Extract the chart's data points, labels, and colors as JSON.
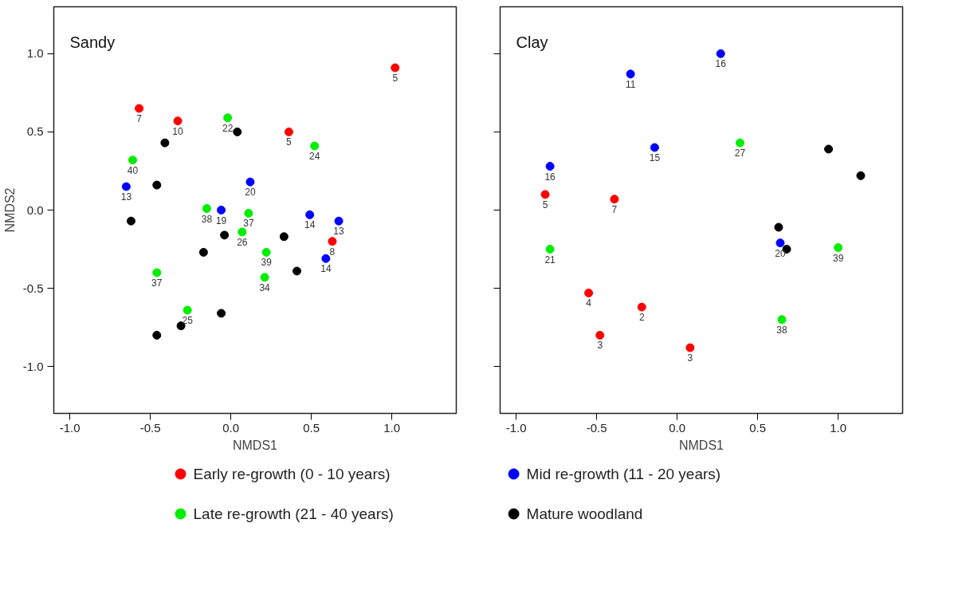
{
  "chart_data": [
    {
      "type": "scatter",
      "title": "Sandy",
      "xlabel": "NMDS1",
      "ylabel": "NMDS2",
      "xlim": [
        -1.1,
        1.4
      ],
      "ylim": [
        -1.3,
        1.3
      ],
      "xticks": [
        {
          "value": -1,
          "label": "-1.0"
        },
        {
          "value": -0.5,
          "label": "-0.5"
        },
        {
          "value": 0,
          "label": "0.0"
        },
        {
          "value": 0.5,
          "label": "0.5"
        },
        {
          "value": 1,
          "label": "1.0"
        }
      ],
      "yticks": [
        {
          "value": -1,
          "label": "-1.0"
        },
        {
          "value": -0.5,
          "label": "-0.5"
        },
        {
          "value": 0,
          "label": "0.0"
        },
        {
          "value": 0.5,
          "label": "0.5"
        },
        {
          "value": 1,
          "label": "1.0"
        }
      ],
      "grid": false,
      "marker": "circle",
      "legend": "bottom",
      "series": [
        {
          "name": "Early re-growth (0 - 10 years)",
          "color": "#ff0000",
          "x": [
            1.02,
            -0.57,
            -0.33,
            0.36,
            0.63
          ],
          "values": [
            0.91,
            0.65,
            0.57,
            0.5,
            -0.2
          ]
        },
        {
          "name": "Mid re-growth (11 - 20 years)",
          "color": "#0000ff",
          "x": [
            -0.65,
            0.12,
            -0.06,
            0.49,
            0.67,
            0.59
          ],
          "values": [
            0.15,
            0.18,
            0.0,
            -0.03,
            -0.07,
            -0.31
          ]
        },
        {
          "name": "Late re-growth (21 - 40 years)",
          "color": "#00ee00",
          "x": [
            -0.61,
            -0.02,
            0.52,
            -0.15,
            0.11,
            0.07,
            0.22,
            0.21,
            -0.46,
            -0.27
          ],
          "values": [
            0.32,
            0.59,
            0.41,
            0.01,
            -0.02,
            -0.14,
            -0.27,
            -0.43,
            -0.4,
            -0.64
          ]
        },
        {
          "name": "Mature woodland",
          "color": "#000000",
          "x": [
            0.04,
            -0.41,
            -0.46,
            -0.62,
            -0.04,
            -0.17,
            0.33,
            0.41,
            -0.06,
            -0.31,
            -0.46
          ],
          "values": [
            0.5,
            0.43,
            0.16,
            -0.07,
            -0.16,
            -0.27,
            -0.17,
            -0.39,
            -0.66,
            -0.74,
            -0.8
          ]
        }
      ],
      "annotations": [
        {
          "text": "5",
          "x": 1.02,
          "y": 0.91
        },
        {
          "text": "7",
          "x": -0.57,
          "y": 0.65
        },
        {
          "text": "10",
          "x": -0.33,
          "y": 0.57
        },
        {
          "text": "5",
          "x": 0.36,
          "y": 0.5
        },
        {
          "text": "8",
          "x": 0.63,
          "y": -0.2
        },
        {
          "text": "13",
          "x": -0.65,
          "y": 0.15
        },
        {
          "text": "20",
          "x": 0.12,
          "y": 0.18
        },
        {
          "text": "19",
          "x": -0.06,
          "y": 0.0
        },
        {
          "text": "14",
          "x": 0.49,
          "y": -0.03
        },
        {
          "text": "13",
          "x": 0.67,
          "y": -0.07
        },
        {
          "text": "14",
          "x": 0.59,
          "y": -0.31
        },
        {
          "text": "40",
          "x": -0.61,
          "y": 0.32
        },
        {
          "text": "22",
          "x": -0.02,
          "y": 0.59
        },
        {
          "text": "24",
          "x": 0.52,
          "y": 0.41
        },
        {
          "text": "38",
          "x": -0.15,
          "y": 0.01
        },
        {
          "text": "37",
          "x": 0.11,
          "y": -0.02
        },
        {
          "text": "26",
          "x": 0.07,
          "y": -0.14
        },
        {
          "text": "39",
          "x": 0.22,
          "y": -0.27
        },
        {
          "text": "34",
          "x": 0.21,
          "y": -0.43
        },
        {
          "text": "37",
          "x": -0.46,
          "y": -0.4
        },
        {
          "text": "25",
          "x": -0.27,
          "y": -0.64
        }
      ]
    },
    {
      "type": "scatter",
      "title": "Clay",
      "xlabel": "NMDS1",
      "xlim": [
        -1.1,
        1.4
      ],
      "ylim": [
        -1.3,
        1.3
      ],
      "xticks": [
        {
          "value": -1,
          "label": "-1.0"
        },
        {
          "value": -0.5,
          "label": "-0.5"
        },
        {
          "value": 0,
          "label": "0.0"
        },
        {
          "value": 0.5,
          "label": "0.5"
        },
        {
          "value": 1,
          "label": "1.0"
        }
      ],
      "yticks": [
        {
          "value": -1,
          "label": null
        },
        {
          "value": -0.5,
          "label": null
        },
        {
          "value": 0,
          "label": null
        },
        {
          "value": 0.5,
          "label": null
        },
        {
          "value": 1,
          "label": null
        }
      ],
      "tick_labels": "x",
      "grid": false,
      "marker": "circle",
      "series": [
        {
          "color": "#ff0000",
          "x": [
            -0.82,
            -0.39,
            -0.55,
            -0.22,
            -0.48,
            0.08
          ],
          "values": [
            0.1,
            0.07,
            -0.53,
            -0.62,
            -0.8,
            -0.88
          ]
        },
        {
          "color": "#0000ff",
          "x": [
            0.27,
            -0.29,
            -0.14,
            -0.79,
            0.64
          ],
          "values": [
            1.0,
            0.87,
            0.4,
            0.28,
            -0.21
          ]
        },
        {
          "color": "#00ee00",
          "x": [
            0.39,
            -0.79,
            1.0,
            0.65
          ],
          "values": [
            0.43,
            -0.25,
            -0.24,
            -0.7
          ]
        },
        {
          "color": "#000000",
          "x": [
            0.94,
            1.14,
            0.63,
            0.68
          ],
          "values": [
            0.39,
            0.22,
            -0.11,
            -0.25
          ]
        }
      ],
      "annotations": [
        {
          "text": "5",
          "x": -0.82,
          "y": 0.1
        },
        {
          "text": "7",
          "x": -0.39,
          "y": 0.07
        },
        {
          "text": "4",
          "x": -0.55,
          "y": -0.53
        },
        {
          "text": "2",
          "x": -0.22,
          "y": -0.62
        },
        {
          "text": "3",
          "x": -0.48,
          "y": -0.8
        },
        {
          "text": "3",
          "x": 0.08,
          "y": -0.88
        },
        {
          "text": "16",
          "x": 0.27,
          "y": 1.0
        },
        {
          "text": "11",
          "x": -0.29,
          "y": 0.87
        },
        {
          "text": "15",
          "x": -0.14,
          "y": 0.4
        },
        {
          "text": "16",
          "x": -0.79,
          "y": 0.28
        },
        {
          "text": "20",
          "x": 0.64,
          "y": -0.21
        },
        {
          "text": "27",
          "x": 0.39,
          "y": 0.43
        },
        {
          "text": "21",
          "x": -0.79,
          "y": -0.25
        },
        {
          "text": "39",
          "x": 1.0,
          "y": -0.24
        },
        {
          "text": "38",
          "x": 0.65,
          "y": -0.7
        }
      ]
    }
  ]
}
